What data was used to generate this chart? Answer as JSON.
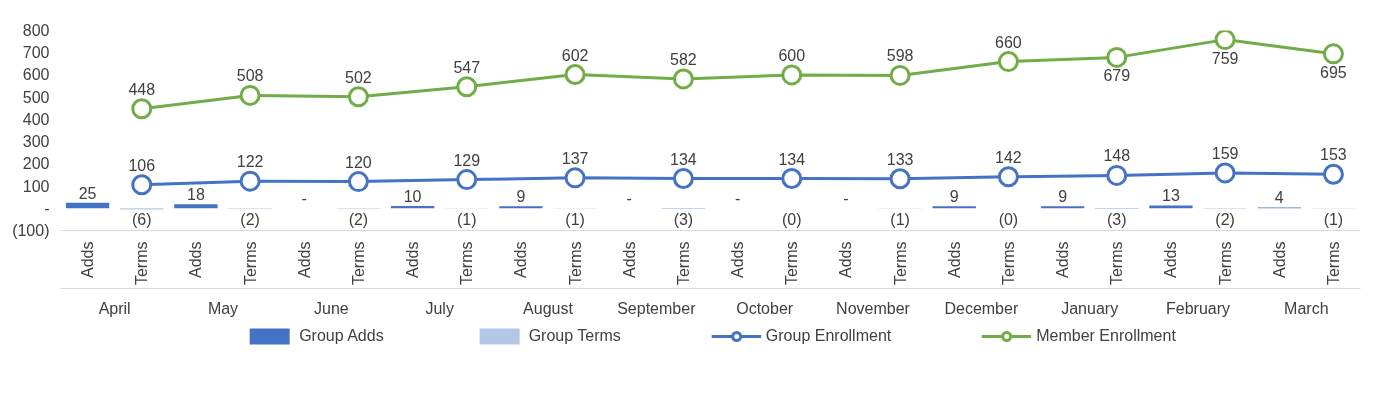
{
  "chart_data": {
    "type": "bar",
    "categories": [
      "Adds",
      "Terms",
      "Adds",
      "Terms",
      "Adds",
      "Terms",
      "Adds",
      "Terms",
      "Adds",
      "Terms",
      "Adds",
      "Terms",
      "Adds",
      "Terms",
      "Adds",
      "Terms",
      "Adds",
      "Terms",
      "Adds",
      "Terms",
      "Adds",
      "Terms",
      "Adds",
      "Terms"
    ],
    "annotations": [
      "April",
      "May",
      "June",
      "July",
      "August",
      "September",
      "October",
      "November",
      "December",
      "January",
      "February",
      "March"
    ],
    "series": [
      {
        "name": "Group Adds",
        "color": "#4472c4",
        "values": [
          25,
          null,
          18,
          null,
          0,
          null,
          10,
          null,
          9,
          null,
          0,
          null,
          0,
          null,
          0,
          null,
          9,
          null,
          9,
          null,
          13,
          null,
          4,
          null
        ],
        "value_labels": [
          "25",
          null,
          "18",
          null,
          "-",
          null,
          "10",
          null,
          "9",
          null,
          "-",
          null,
          "-",
          null,
          "-",
          null,
          "9",
          null,
          "9",
          null,
          "13",
          null,
          "4",
          null
        ]
      },
      {
        "name": "Group Terms",
        "color": "#b4c7e7",
        "values": [
          null,
          -6,
          null,
          -2,
          null,
          -2,
          null,
          -1,
          null,
          -1,
          null,
          -3,
          null,
          0,
          null,
          -1,
          null,
          0,
          null,
          -3,
          null,
          -2,
          null,
          -1
        ],
        "value_labels": [
          null,
          "(6)",
          null,
          "(2)",
          null,
          "(2)",
          null,
          "(1)",
          null,
          "(1)",
          null,
          "(3)",
          null,
          "(0)",
          null,
          "(1)",
          null,
          "(0)",
          null,
          "(3)",
          null,
          "(2)",
          null,
          "(1)"
        ]
      },
      {
        "name": "Group Enrollment",
        "type": "line",
        "color": "#4472c4",
        "values": [
          null,
          106,
          null,
          122,
          null,
          120,
          null,
          129,
          null,
          137,
          null,
          134,
          null,
          134,
          null,
          133,
          null,
          142,
          null,
          148,
          null,
          159,
          null,
          153
        ],
        "value_labels": [
          null,
          "106",
          null,
          "122",
          null,
          "120",
          null,
          "129",
          null,
          "137",
          null,
          "134",
          null,
          "134",
          null,
          "133",
          null,
          "142",
          null,
          "148",
          null,
          "159",
          null,
          "153"
        ]
      },
      {
        "name": "Member Enrollment",
        "type": "line",
        "color": "#70ad47",
        "values": [
          null,
          448,
          null,
          508,
          null,
          502,
          null,
          547,
          null,
          602,
          null,
          582,
          null,
          600,
          null,
          598,
          null,
          660,
          null,
          679,
          null,
          759,
          null,
          695
        ],
        "value_labels": [
          null,
          "448",
          null,
          "508",
          null,
          "502",
          null,
          "547",
          null,
          "602",
          null,
          "582",
          null,
          "600",
          null,
          "598",
          null,
          "660",
          null,
          "679",
          null,
          "759",
          null,
          "695"
        ]
      }
    ],
    "ylim": [
      -100,
      800
    ],
    "yticks": [
      {
        "value": -100,
        "label": "(100)"
      },
      {
        "value": 0,
        "label": "-"
      },
      100,
      200,
      300,
      400,
      500,
      600,
      700,
      800
    ],
    "marker": "circle",
    "line_style": "solid",
    "grid": false,
    "legend": "bottom"
  }
}
